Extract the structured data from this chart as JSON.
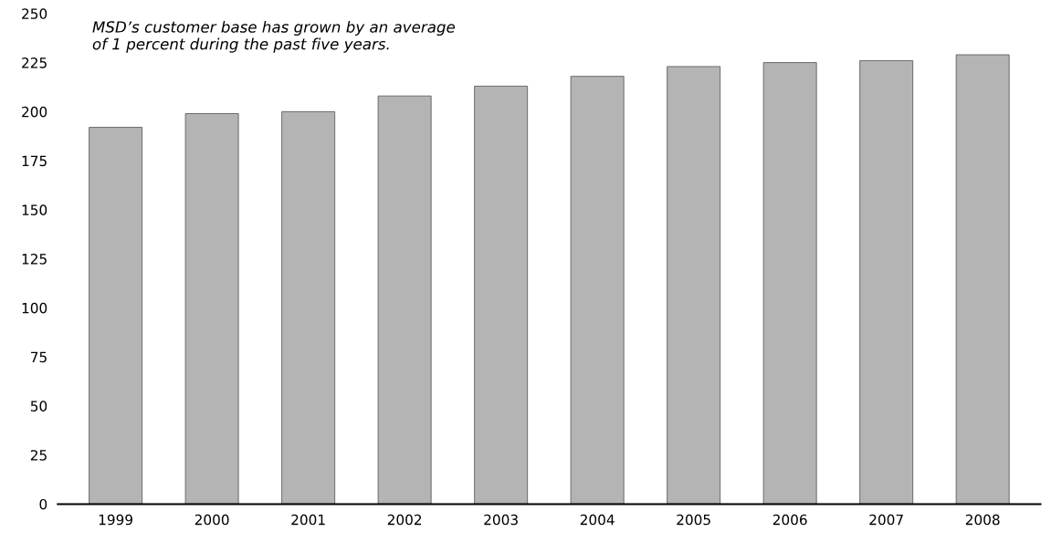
{
  "chart_data": {
    "type": "bar",
    "annotations": [
      "MSD’s customer base has grown by an average\nof 1 percent during the past five years."
    ],
    "categories": [
      "1999",
      "2000",
      "2001",
      "2002",
      "2003",
      "2004",
      "2005",
      "2006",
      "2007",
      "2008"
    ],
    "values": [
      192,
      199,
      200,
      208,
      213,
      218,
      223,
      225,
      226,
      229
    ],
    "color": "#b4b4b4",
    "ylim": [
      0,
      250
    ],
    "yticks": [
      0,
      25,
      50,
      75,
      100,
      125,
      150,
      175,
      200,
      225,
      250
    ],
    "grid": false
  }
}
